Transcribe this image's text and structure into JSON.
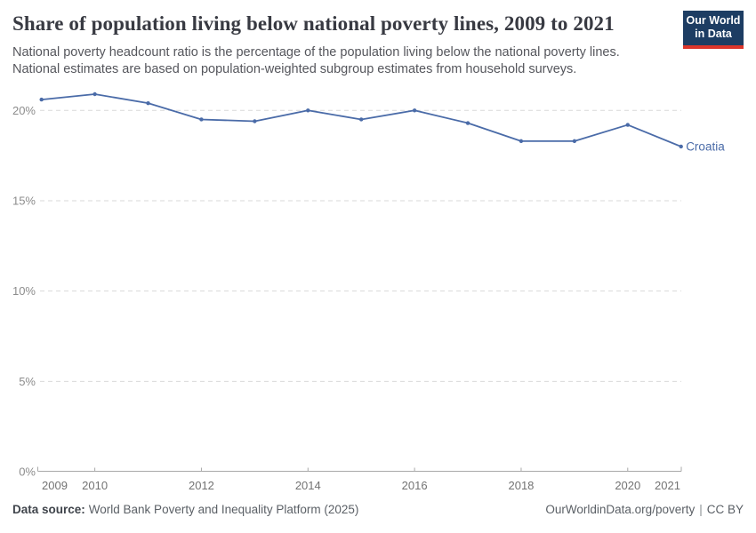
{
  "header": {
    "title": "Share of population living below national poverty lines, 2009 to 2021",
    "subtitle": "National poverty headcount ratio is the percentage of the population living below the national poverty lines. National estimates are based on population-weighted subgroup estimates from household surveys.",
    "logo": {
      "line1": "Our World",
      "line2": "in Data",
      "bg_color": "#1d3d63",
      "bar_color": "#dc352b"
    }
  },
  "chart_data": {
    "type": "line",
    "title": "Share of population living below national poverty lines, 2009 to 2021",
    "x": [
      2009,
      2010,
      2011,
      2012,
      2013,
      2014,
      2015,
      2016,
      2017,
      2018,
      2019,
      2020,
      2021
    ],
    "series": [
      {
        "name": "Croatia",
        "color": "#4a6ba8",
        "values": [
          20.6,
          20.9,
          20.4,
          19.5,
          19.4,
          20.0,
          19.5,
          20.0,
          19.3,
          18.3,
          18.3,
          19.2,
          18.0
        ]
      }
    ],
    "xlabel": "",
    "ylabel": "",
    "xlim": [
      2009,
      2021
    ],
    "ylim": [
      0,
      21.5
    ],
    "y_ticks": [
      0,
      5,
      10,
      15,
      20
    ],
    "y_tick_suffix": "%",
    "x_ticks_labeled": [
      2009,
      2010,
      2012,
      2014,
      2016,
      2018,
      2020,
      2021
    ],
    "grid": "horizontal-dashed",
    "legend": "series-end-label"
  },
  "footer": {
    "source_label": "Data source:",
    "source_text": "World Bank Poverty and Inequality Platform (2025)",
    "link_text": "OurWorldinData.org/poverty",
    "separator": "|",
    "license": "CC BY"
  }
}
